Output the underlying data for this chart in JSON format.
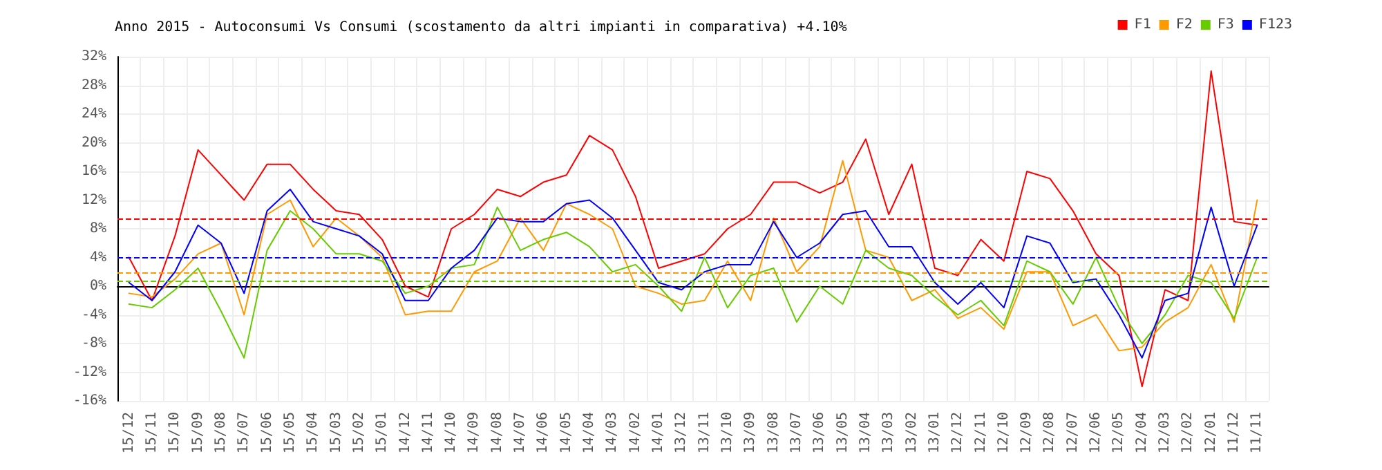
{
  "chart_data": {
    "type": "line",
    "title": "Anno 2015 - Autoconsumi Vs Consumi (scostamento da altri impianti in comparativa) +4.10%",
    "categories": [
      "15/12",
      "15/11",
      "15/10",
      "15/09",
      "15/08",
      "15/07",
      "15/06",
      "15/05",
      "15/04",
      "15/03",
      "15/02",
      "15/01",
      "14/12",
      "14/11",
      "14/10",
      "14/09",
      "14/08",
      "14/07",
      "14/06",
      "14/05",
      "14/04",
      "14/03",
      "14/02",
      "14/01",
      "13/12",
      "13/11",
      "13/10",
      "13/09",
      "13/08",
      "13/07",
      "13/06",
      "13/05",
      "13/04",
      "13/03",
      "13/02",
      "13/01",
      "12/12",
      "12/11",
      "12/10",
      "12/09",
      "12/08",
      "12/07",
      "12/06",
      "12/05",
      "12/04",
      "12/03",
      "12/02",
      "12/01",
      "11/12",
      "11/11"
    ],
    "series": [
      {
        "name": "F1",
        "color": "#ff0000",
        "values": [
          4,
          -2,
          7,
          19,
          15.5,
          12,
          17,
          17,
          13.5,
          10.5,
          10,
          6.5,
          0,
          -1.5,
          8,
          10,
          13.5,
          12.5,
          14.5,
          15.5,
          21,
          19,
          12.5,
          2.5,
          3.5,
          4.5,
          8,
          10,
          14.5,
          14.5,
          13,
          14.5,
          20.5,
          10,
          17,
          2.5,
          1.5,
          6.5,
          3.5,
          16,
          15,
          10.5,
          4.5,
          1.5,
          -14,
          -0.5,
          -2,
          30,
          9,
          8.5
        ]
      },
      {
        "name": "F2",
        "color": "#ff9900",
        "values": [
          -1,
          -1.5,
          1,
          4.5,
          6,
          -4,
          10,
          12,
          5.5,
          9.5,
          7,
          4,
          -4,
          -3.5,
          -3.5,
          2,
          3.5,
          9.5,
          5,
          11.5,
          10,
          8,
          0,
          -1,
          -2.5,
          -2,
          3.5,
          -2,
          9.5,
          2,
          5.5,
          17.5,
          5,
          4,
          -2,
          -0.5,
          -4.5,
          -3,
          -6,
          2,
          2,
          -5.5,
          -4,
          -9,
          -8.5,
          -5,
          -3,
          3,
          -5,
          12
        ]
      },
      {
        "name": "F3",
        "color": "#66cc00",
        "values": [
          -2.5,
          -3,
          -0.5,
          2.5,
          -3.5,
          -10,
          5,
          10.5,
          8,
          4.5,
          4.5,
          3.5,
          -1,
          0,
          2.5,
          3,
          11,
          5,
          6.5,
          7.5,
          5.5,
          2,
          3,
          0,
          -3.5,
          4,
          -3,
          1.5,
          2.5,
          -5,
          0,
          -2.5,
          5,
          2.5,
          1.5,
          -1.5,
          -4,
          -2,
          -5.5,
          3.5,
          2,
          -2.5,
          4,
          -3,
          -8,
          -4,
          1.5,
          0.5,
          -4.5,
          4
        ]
      },
      {
        "name": "F123",
        "color": "#0000ff",
        "values": [
          0.5,
          -2,
          2,
          8.5,
          6,
          -1,
          10.5,
          13.5,
          9,
          8,
          7,
          4.5,
          -2,
          -2,
          2.5,
          5,
          9.5,
          9,
          9,
          11.5,
          12,
          9.5,
          5,
          0.5,
          -0.5,
          2,
          3,
          3,
          9,
          4,
          6,
          10,
          10.5,
          5.5,
          5.5,
          0.5,
          -2.5,
          0.5,
          -3,
          7,
          6,
          0.5,
          1,
          -4,
          -10,
          -2,
          -1,
          11,
          0,
          8.5
        ]
      }
    ],
    "ylim": [
      -16,
      32
    ],
    "yticks": [
      {
        "value": -16,
        "label": "-16%"
      },
      {
        "value": -12,
        "label": "-12%"
      },
      {
        "value": -8,
        "label": "-8%"
      },
      {
        "value": -4,
        "label": "-4%"
      },
      {
        "value": 0,
        "label": "0%"
      },
      {
        "value": 4,
        "label": "4%"
      },
      {
        "value": 8,
        "label": "8%"
      },
      {
        "value": 12,
        "label": "12%"
      },
      {
        "value": 16,
        "label": "16%"
      },
      {
        "value": 20,
        "label": "20%"
      },
      {
        "value": 24,
        "label": "24%"
      },
      {
        "value": 28,
        "label": "28%"
      },
      {
        "value": 32,
        "label": "32%"
      }
    ],
    "ref_lines": [
      {
        "axis": "y",
        "value": 9.4,
        "color": "#ff0000",
        "line_style": "dashed"
      },
      {
        "axis": "y",
        "value": 1.9,
        "color": "#ff9900",
        "line_style": "dashed"
      },
      {
        "axis": "y",
        "value": 0.7,
        "color": "#66cc00",
        "line_style": "dashed"
      },
      {
        "axis": "y",
        "value": 4,
        "color": "#0000ff",
        "line_style": "dashed"
      }
    ],
    "grid": true,
    "legend": "top right",
    "marker": "none",
    "line_style": "solid"
  }
}
